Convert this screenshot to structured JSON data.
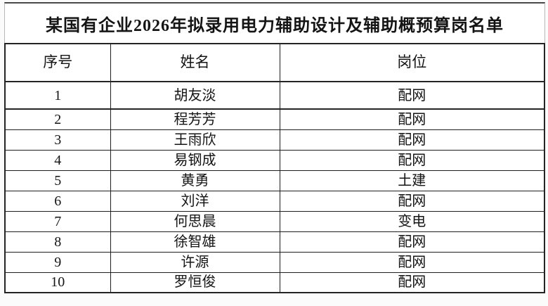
{
  "table": {
    "title": "某国有企业2026年拟录用电力辅助设计及辅助概预算岗名单",
    "columns": [
      "序号",
      "姓名",
      "岗位"
    ],
    "rows": [
      {
        "no": "1",
        "name": "胡友淡",
        "position": "配网"
      },
      {
        "no": "2",
        "name": "程芳芳",
        "position": "配网"
      },
      {
        "no": "3",
        "name": "王雨欣",
        "position": "配网"
      },
      {
        "no": "4",
        "name": "易钢成",
        "position": "配网"
      },
      {
        "no": "5",
        "name": "黄勇",
        "position": "土建"
      },
      {
        "no": "6",
        "name": "刘洋",
        "position": "配网"
      },
      {
        "no": "7",
        "name": "何思晨",
        "position": "变电"
      },
      {
        "no": "8",
        "name": "徐智雄",
        "position": "配网"
      },
      {
        "no": "9",
        "name": "许源",
        "position": "配网"
      },
      {
        "no": "10",
        "name": "罗恒俊",
        "position": "配网"
      }
    ],
    "colors": {
      "border": "#1f1f1f",
      "text": "#141414",
      "background": "#ffffff"
    }
  }
}
